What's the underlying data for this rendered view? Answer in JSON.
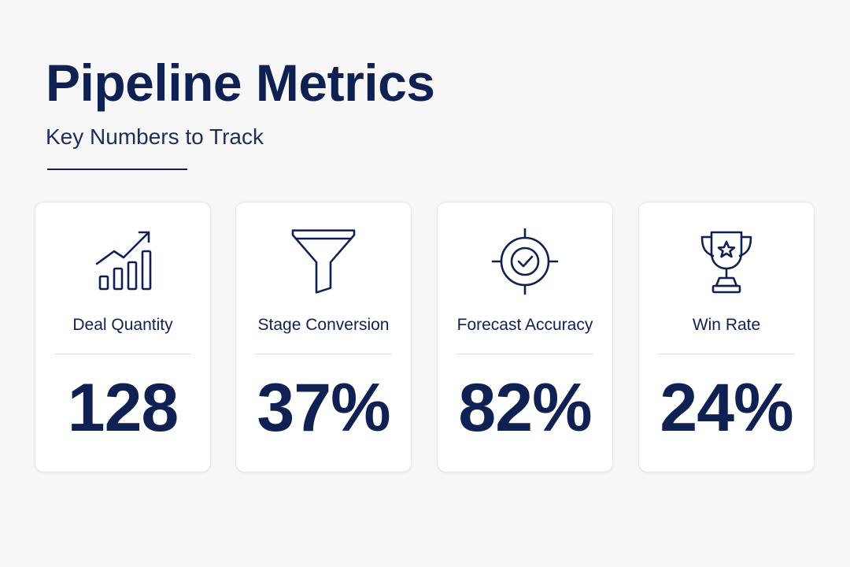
{
  "header": {
    "title": "Pipeline Metrics",
    "subtitle": "Key Numbers to Track"
  },
  "cards": [
    {
      "icon": "growth-chart-icon",
      "label": "Deal Quantity",
      "value": "128"
    },
    {
      "icon": "funnel-icon",
      "label": "Stage Conversion",
      "value": "37%"
    },
    {
      "icon": "target-check-icon",
      "label": "Forecast Accuracy",
      "value": "82%"
    },
    {
      "icon": "trophy-icon",
      "label": "Win Rate",
      "value": "24%"
    }
  ],
  "colors": {
    "primary": "#0f2152",
    "background": "#f7f7f8",
    "card": "#ffffff",
    "divider": "#dcdfe5"
  }
}
